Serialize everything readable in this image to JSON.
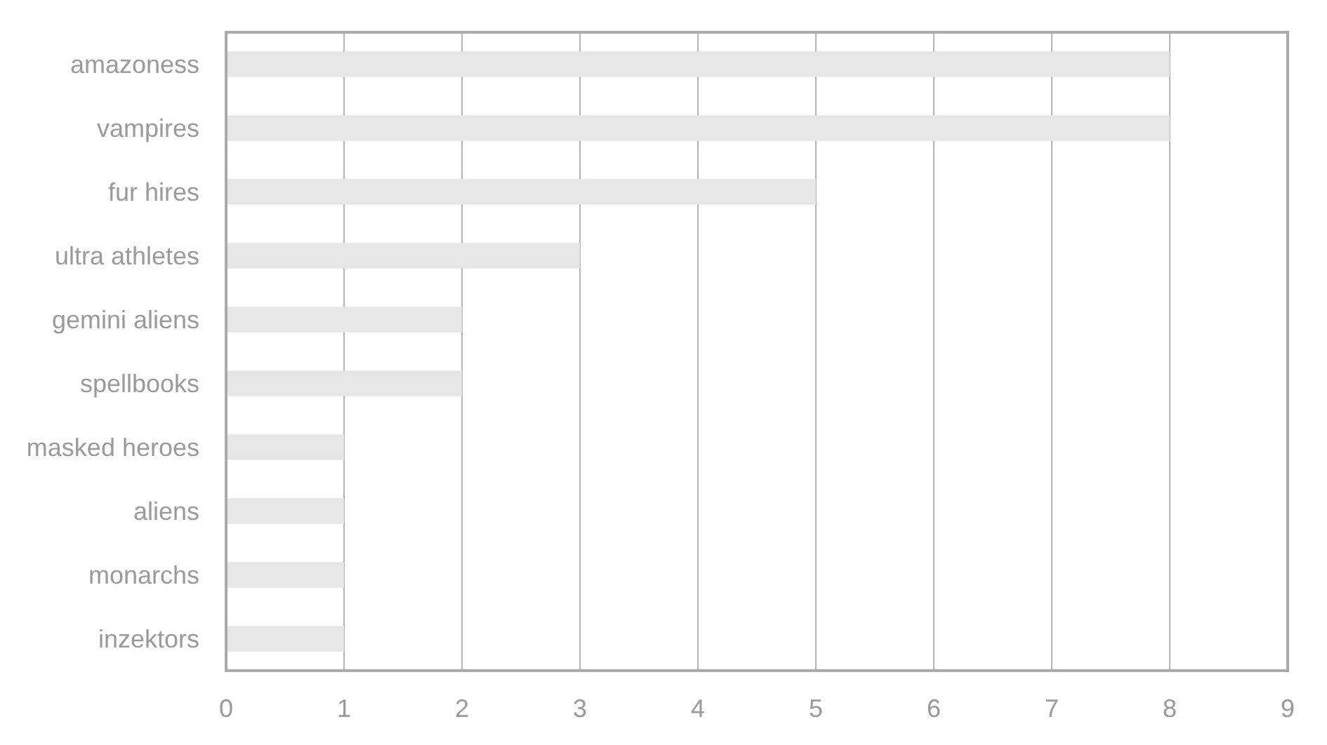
{
  "chart_data": {
    "type": "bar",
    "orientation": "horizontal",
    "categories": [
      "amazoness",
      "vampires",
      "fur hires",
      "ultra athletes",
      "gemini aliens",
      "spellbooks",
      "masked heroes",
      "aliens",
      "monarchs",
      "inzektors"
    ],
    "values": [
      8,
      8,
      5,
      3,
      2,
      2,
      1,
      1,
      1,
      1
    ],
    "color": "#e6e6e6",
    "xlim": [
      0,
      9
    ],
    "xticks": [
      0,
      1,
      2,
      3,
      4,
      5,
      6,
      7,
      8,
      9
    ],
    "grid": true
  }
}
